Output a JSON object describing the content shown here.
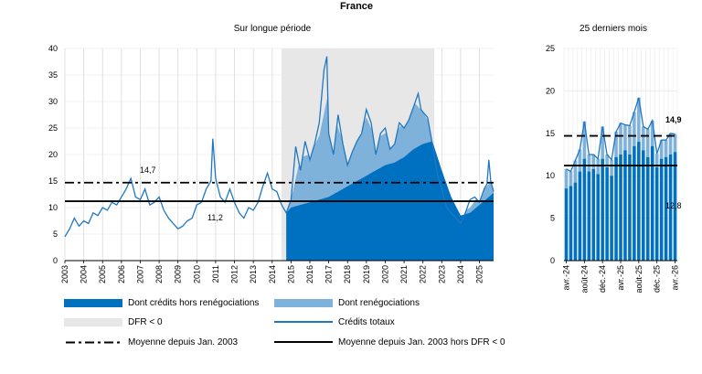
{
  "title": "France",
  "colors": {
    "dark_blue": "#0070C0",
    "light_blue": "#7FB2DB",
    "line_blue": "#1F78C1",
    "dfr_grey": "#E7E7E7",
    "black": "#000000"
  },
  "legend": {
    "credits_hors_reneg": "Dont crédits hors renégociations",
    "renegociations": "Dont renégociations",
    "dfr": "DFR < 0",
    "credits_totaux": "Crédits totaux",
    "moyenne_2003": "Moyenne depuis Jan. 2003",
    "moyenne_hors_dfr": "Moyenne depuis Jan. 2003 hors DFR < 0"
  },
  "chart_data": [
    {
      "type": "area",
      "title": "Sur longue période",
      "ylim": [
        0,
        40
      ],
      "yticks": [
        "0",
        "5",
        "10",
        "15",
        "20",
        "25",
        "30",
        "35",
        "40"
      ],
      "x_tick_labels": [
        "2003",
        "2004",
        "2005",
        "2006",
        "2007",
        "2008",
        "2009",
        "2010",
        "2011",
        "2012",
        "2013",
        "2014",
        "2015",
        "2016",
        "2017",
        "2018",
        "2019",
        "2020",
        "2021",
        "2022",
        "2023",
        "2024",
        "2025"
      ],
      "xlim": [
        2003.0,
        2025.75
      ],
      "dfr_shaded_period": [
        2014.5,
        2022.6
      ],
      "reference_lines": [
        {
          "name": "Moyenne depuis Jan. 2003",
          "value": 14.7,
          "label": "14,7",
          "style": "dash-dot"
        },
        {
          "name": "Moyenne depuis Jan. 2003 hors DFR < 0",
          "value": 11.2,
          "label": "11,2",
          "style": "solid"
        }
      ],
      "series": [
        {
          "name": "Crédits totaux",
          "kind": "line",
          "x": [
            2003.0,
            2003.25,
            2003.5,
            2003.75,
            2004.0,
            2004.25,
            2004.5,
            2004.75,
            2005.0,
            2005.25,
            2005.5,
            2005.75,
            2006.0,
            2006.25,
            2006.5,
            2006.75,
            2007.0,
            2007.25,
            2007.5,
            2007.75,
            2008.0,
            2008.25,
            2008.5,
            2008.75,
            2009.0,
            2009.25,
            2009.5,
            2009.75,
            2010.0,
            2010.25,
            2010.5,
            2010.75,
            2010.85,
            2011.0,
            2011.25,
            2011.5,
            2011.75,
            2012.0,
            2012.25,
            2012.5,
            2012.75,
            2013.0,
            2013.25,
            2013.5,
            2013.75,
            2014.0,
            2014.25,
            2014.5,
            2014.75,
            2015.0,
            2015.25,
            2015.5,
            2015.75,
            2016.0,
            2016.25,
            2016.5,
            2016.75,
            2016.9,
            2017.0,
            2017.25,
            2017.5,
            2017.75,
            2018.0,
            2018.25,
            2018.5,
            2018.75,
            2019.0,
            2019.25,
            2019.5,
            2019.75,
            2020.0,
            2020.25,
            2020.5,
            2020.75,
            2021.0,
            2021.25,
            2021.5,
            2021.75,
            2021.9,
            2022.0,
            2022.25,
            2022.5,
            2022.75,
            2023.0,
            2023.25,
            2023.5,
            2023.75,
            2024.0,
            2024.25,
            2024.5,
            2024.75,
            2025.0,
            2025.25,
            2025.4,
            2025.5,
            2025.6,
            2025.75
          ],
          "values": [
            4.5,
            6.0,
            8.0,
            6.5,
            7.5,
            7.0,
            9.0,
            8.5,
            10.0,
            9.5,
            11.0,
            10.5,
            12.0,
            13.5,
            15.5,
            12.0,
            11.5,
            13.5,
            10.5,
            11.0,
            12.0,
            9.5,
            8.0,
            7.0,
            6.0,
            6.5,
            7.5,
            8.0,
            10.5,
            11.0,
            13.5,
            15.0,
            23.0,
            15.5,
            12.0,
            11.0,
            13.5,
            11.0,
            9.0,
            8.0,
            10.0,
            9.5,
            11.0,
            14.0,
            16.5,
            13.5,
            13.0,
            10.5,
            9.0,
            11.5,
            21.5,
            17.0,
            22.5,
            19.0,
            22.0,
            26.0,
            36.0,
            38.5,
            24.0,
            20.0,
            27.5,
            22.0,
            18.0,
            20.5,
            22.5,
            24.0,
            28.5,
            26.0,
            20.0,
            24.0,
            25.0,
            21.0,
            22.0,
            26.0,
            25.0,
            26.5,
            29.0,
            31.5,
            28.5,
            28.0,
            27.0,
            22.0,
            16.5,
            13.5,
            10.0,
            9.0,
            8.0,
            7.0,
            9.0,
            11.5,
            12.0,
            11.0,
            13.5,
            14.5,
            19.0,
            15.0,
            13.0
          ]
        },
        {
          "name": "Dont crédits hors renégociations",
          "kind": "area",
          "x": [
            2014.75,
            2015.0,
            2015.5,
            2016.0,
            2016.5,
            2017.0,
            2017.5,
            2018.0,
            2018.5,
            2019.0,
            2019.5,
            2020.0,
            2020.5,
            2021.0,
            2021.5,
            2022.0,
            2022.5,
            2023.0,
            2023.5,
            2024.0,
            2024.5,
            2025.0,
            2025.5,
            2025.75
          ],
          "values": [
            9.0,
            10.0,
            10.5,
            11.0,
            11.5,
            12.0,
            13.0,
            14.0,
            15.0,
            16.0,
            17.0,
            18.0,
            18.5,
            19.5,
            21.0,
            22.0,
            22.5,
            17.0,
            12.0,
            8.5,
            9.0,
            10.5,
            12.0,
            12.8
          ]
        },
        {
          "name": "Dont renégociations",
          "kind": "area",
          "stacked_on": "Dont crédits hors renégociations",
          "x": [
            2014.75,
            2015.0,
            2015.5,
            2016.0,
            2016.5,
            2017.0,
            2017.5,
            2018.0,
            2018.5,
            2019.0,
            2019.5,
            2020.0,
            2020.5,
            2021.0,
            2021.5,
            2022.0,
            2022.5,
            2023.0,
            2023.5,
            2024.0,
            2024.5,
            2025.0,
            2025.5,
            2025.75
          ],
          "values": [
            0.5,
            1.5,
            9.0,
            9.0,
            12.0,
            20.0,
            12.0,
            6.0,
            8.0,
            11.0,
            6.0,
            6.0,
            5.0,
            7.0,
            9.0,
            6.0,
            2.5,
            1.0,
            0.5,
            0.5,
            1.0,
            2.0,
            2.5,
            2.1
          ]
        }
      ]
    },
    {
      "type": "bar",
      "title": "25 derniers mois",
      "ylim": [
        0,
        25
      ],
      "yticks": [
        "0",
        "5",
        "10",
        "15",
        "20",
        "25"
      ],
      "categories": [
        "avr.-24",
        "mai-24",
        "juin-24",
        "juil.-24",
        "août-24",
        "sept.-24",
        "oct.-24",
        "nov.-24",
        "déc.-24",
        "janv.-25",
        "févr.-25",
        "mars-25",
        "avr.-25",
        "mai-25",
        "juin-25",
        "juil.-25",
        "août-25",
        "sept.-25",
        "oct.-25",
        "nov.-25",
        "déc.-25",
        "janv.-26",
        "févr.-26",
        "mars-26",
        "avr.-26"
      ],
      "x_tick_labels": [
        "avr.-24",
        "août-24",
        "déc.-24",
        "avr.-25",
        "août-25",
        "déc.-25",
        "avr.-26"
      ],
      "reference_lines": [
        {
          "name": "Moyenne depuis Jan. 2003",
          "value": 14.7,
          "style": "dash"
        },
        {
          "name": "Moyenne depuis Jan. 2003 hors DFR < 0",
          "value": 11.2,
          "style": "solid"
        }
      ],
      "annotations": [
        {
          "text": "14,9",
          "value": 14.9,
          "bold": true
        },
        {
          "text": "12,8",
          "value": 12.8,
          "bold": false
        }
      ],
      "series": [
        {
          "name": "Dont crédits hors renégociations",
          "values": [
            8.5,
            8.8,
            9.2,
            10.5,
            12.0,
            10.5,
            10.8,
            10.2,
            12.0,
            11.0,
            10.0,
            12.2,
            12.5,
            13.0,
            12.5,
            13.5,
            14.0,
            13.0,
            12.2,
            13.5,
            11.0,
            12.0,
            12.2,
            12.5,
            12.8
          ]
        },
        {
          "name": "Dont renégociations",
          "values": [
            2.3,
            1.7,
            2.6,
            2.6,
            4.4,
            2.0,
            1.7,
            1.8,
            3.8,
            1.5,
            1.9,
            3.0,
            3.7,
            3.0,
            3.4,
            4.0,
            5.2,
            2.8,
            3.3,
            3.0,
            1.6,
            2.2,
            2.0,
            2.5,
            2.1
          ]
        },
        {
          "name": "Crédits totaux",
          "kind": "line",
          "values": [
            10.8,
            10.5,
            11.8,
            13.1,
            16.4,
            12.5,
            12.5,
            12.0,
            15.8,
            12.5,
            11.9,
            15.2,
            16.2,
            16.0,
            15.9,
            17.5,
            19.2,
            15.8,
            15.5,
            16.5,
            12.6,
            14.2,
            14.2,
            15.0,
            14.9
          ]
        }
      ]
    }
  ]
}
